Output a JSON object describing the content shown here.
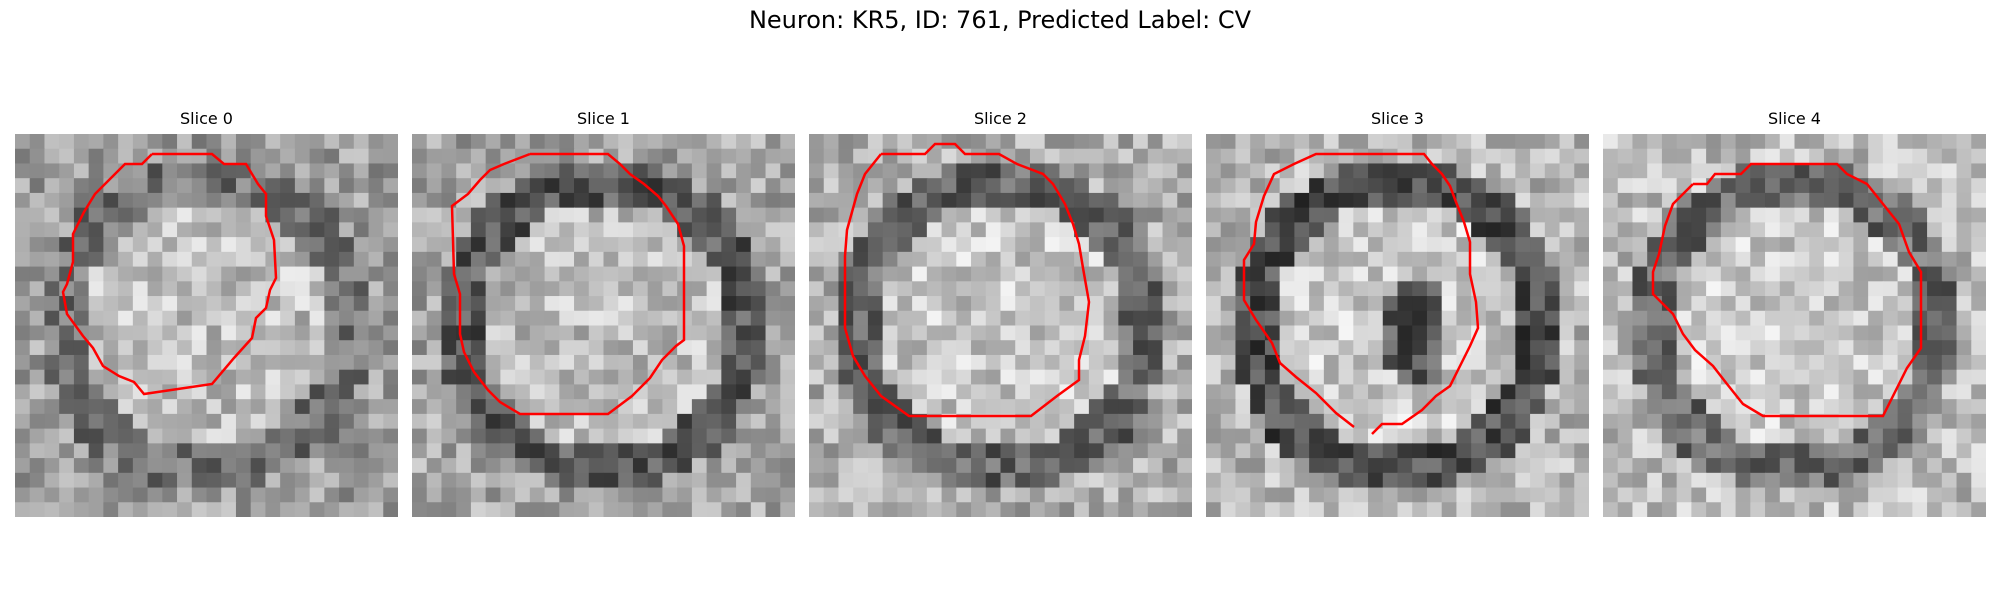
{
  "figure": {
    "title": "Neuron: KR5, ID: 761, Predicted Label: CV"
  },
  "contour_color": "#ff0000",
  "panels": [
    {
      "title": "Slice 0",
      "center_intensity": 0.75,
      "ring_intensity": 0.45,
      "background_intensity": 0.62,
      "dark_blob": false
    },
    {
      "title": "Slice 1",
      "center_intensity": 0.74,
      "ring_intensity": 0.35,
      "background_intensity": 0.65,
      "dark_blob": false
    },
    {
      "title": "Slice 2",
      "center_intensity": 0.78,
      "ring_intensity": 0.4,
      "background_intensity": 0.68,
      "dark_blob": false
    },
    {
      "title": "Slice 3",
      "center_intensity": 0.8,
      "ring_intensity": 0.3,
      "background_intensity": 0.72,
      "dark_blob": true
    },
    {
      "title": "Slice 4",
      "center_intensity": 0.79,
      "ring_intensity": 0.42,
      "background_intensity": 0.74,
      "dark_blob": false
    }
  ]
}
